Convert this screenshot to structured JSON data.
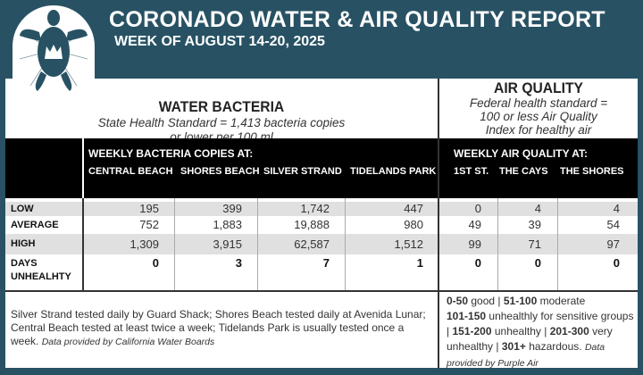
{
  "header": {
    "title": "CORONADO WATER & AIR QUALITY REPORT",
    "subtitle": "WEEK OF AUGUST 14-20, 2025"
  },
  "water": {
    "title": "WATER BACTERIA",
    "standard_line1": "State Health Standard  = 1,413 bacteria copies",
    "standard_line2": "or lower per 100 ml",
    "group_label": "WEEKLY BACTERIA COPIES AT:",
    "columns": [
      "CENTRAL BEACH",
      "SHORES BEACH",
      "SILVER STRAND",
      "TIDELANDS PARK"
    ]
  },
  "air": {
    "title": "AIR QUALITY",
    "standard_line1": "Federal health standard =",
    "standard_line2": "100 or less Air Quality",
    "standard_line3": "Index for healthy air",
    "group_label": "WEEKLY AIR QUALITY AT:",
    "columns": [
      "1ST ST.",
      "THE CAYS",
      "THE SHORES"
    ]
  },
  "rows": [
    {
      "label": "LOW",
      "values": [
        "195",
        "399",
        "1,742",
        "447",
        "0",
        "4",
        "4"
      ]
    },
    {
      "label": "AVERAGE",
      "values": [
        "752",
        "1,883",
        "19,888",
        "980",
        "49",
        "39",
        "54"
      ]
    },
    {
      "label": "HIGH",
      "values": [
        "1,309",
        "3,915",
        "62,587",
        "1,512",
        "99",
        "71",
        "97"
      ]
    },
    {
      "label1": "DAYS",
      "label2": "UNHEALHTY",
      "values": [
        "0",
        "3",
        "7",
        "1",
        "0",
        "0",
        "0"
      ]
    }
  ],
  "footer_water": {
    "text": "Silver Strand tested daily by Guard Shack; Shores Beach tested daily at Avenida Lunar; Central Beach tested at least twice a week; Tidelands Park is usually tested once a week.",
    "source": "Data provided by California Water Boards"
  },
  "footer_air": {
    "r1": "0-50",
    "t1": "good |",
    "r2": "51-100",
    "t2": "moderate",
    "r3": "101-150",
    "t3": "unhealthly for sensitive groups |",
    "r4": "151-200",
    "t4": "unhealthy |",
    "r5": "201-300",
    "t5": "very unhealthy |",
    "r6": "301+",
    "t6": "hazardous.",
    "source": "Data provided by Purple Air"
  },
  "colors": {
    "background": "#285264",
    "band": "#000000",
    "stripe": "#e0e0e0"
  }
}
